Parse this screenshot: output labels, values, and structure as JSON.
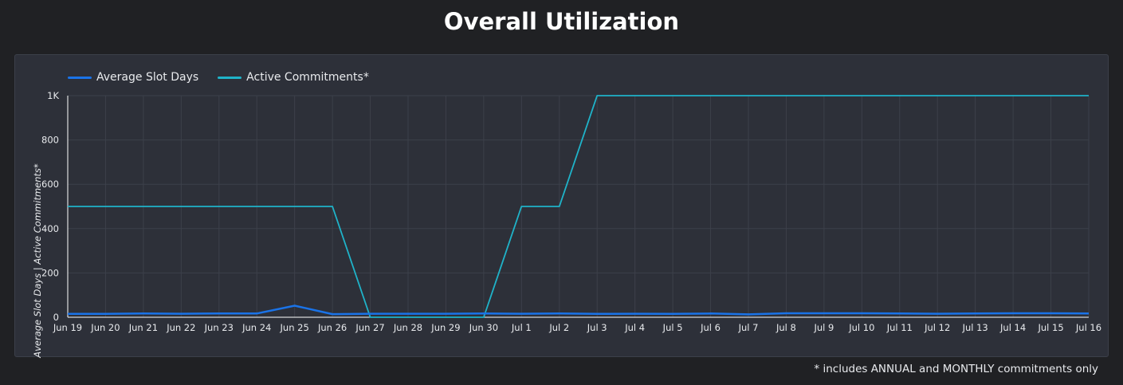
{
  "page": {
    "title": "Overall Utilization",
    "footnote": "* includes ANNUAL and MONTHLY commitments only"
  },
  "colors": {
    "background": "#202124",
    "panel": "#2d3039",
    "grid": "#3c404a",
    "text": "#e8eaed"
  },
  "chart_data": {
    "type": "line",
    "title": "Overall Utilization",
    "xlabel": "",
    "ylabel": "Average Slot Days | Active Commitments*",
    "ylim": [
      0,
      1000
    ],
    "yticks": [
      0,
      200,
      400,
      600,
      800,
      1000
    ],
    "ytick_labels": [
      "0",
      "200",
      "400",
      "600",
      "800",
      "1K"
    ],
    "grid": true,
    "legend_position": "top-left",
    "categories": [
      "Jun 19",
      "Jun 20",
      "Jun 21",
      "Jun 22",
      "Jun 23",
      "Jun 24",
      "Jun 25",
      "Jun 26",
      "Jun 27",
      "Jun 28",
      "Jun 29",
      "Jun 30",
      "Jul 1",
      "Jul 2",
      "Jul 3",
      "Jul 4",
      "Jul 5",
      "Jul 6",
      "Jul 7",
      "Jul 8",
      "Jul 9",
      "Jul 10",
      "Jul 11",
      "Jul 12",
      "Jul 13",
      "Jul 14",
      "Jul 15",
      "Jul 16"
    ],
    "series": [
      {
        "name": "Average Slot Days",
        "color": "#1a73e8",
        "values": [
          15,
          15,
          17,
          16,
          17,
          17,
          52,
          14,
          16,
          16,
          16,
          17,
          16,
          17,
          15,
          16,
          15,
          17,
          13,
          18,
          18,
          18,
          17,
          16,
          17,
          18,
          18,
          17
        ]
      },
      {
        "name": "Active Commitments*",
        "color": "#1fb3c9",
        "values": [
          500,
          500,
          500,
          500,
          500,
          500,
          500,
          500,
          0,
          0,
          0,
          0,
          500,
          500,
          1000,
          1000,
          1000,
          1000,
          1000,
          1000,
          1000,
          1000,
          1000,
          1000,
          1000,
          1000,
          1000,
          1000
        ]
      }
    ]
  }
}
